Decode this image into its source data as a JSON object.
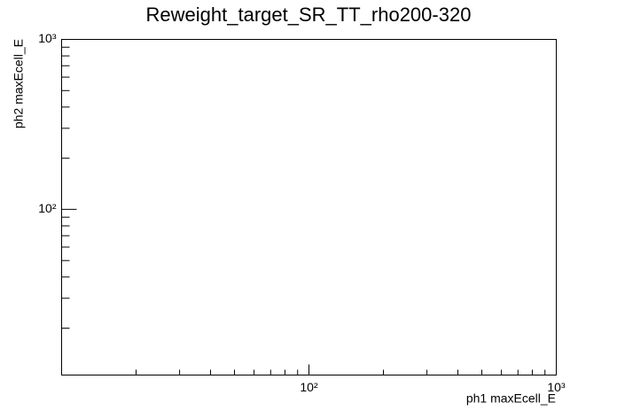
{
  "chart_data": {
    "type": "heatmap",
    "title": "Reweight_target_SR_TT_rho200-320",
    "x_label": "ph1 maxEcell_E",
    "y_label": "ph2 maxEcell_E",
    "x_log": true,
    "y_log": true,
    "xlim": [
      10,
      1000
    ],
    "ylim": [
      10.6,
      1000
    ],
    "xticks": [
      {
        "value": 100,
        "label": "10²"
      },
      {
        "value": 1000,
        "label": "10³"
      }
    ],
    "yticks": [
      {
        "value": 100,
        "label": "10²"
      },
      {
        "value": 1000,
        "label": "10³"
      }
    ],
    "xminorticks": [
      20,
      30,
      40,
      50,
      60,
      70,
      80,
      90,
      200,
      300,
      400,
      500,
      600,
      700,
      800,
      900
    ],
    "yminorticks": [
      20,
      30,
      40,
      50,
      60,
      70,
      80,
      90,
      200,
      300,
      400,
      500,
      600,
      700,
      800,
      900
    ]
  }
}
